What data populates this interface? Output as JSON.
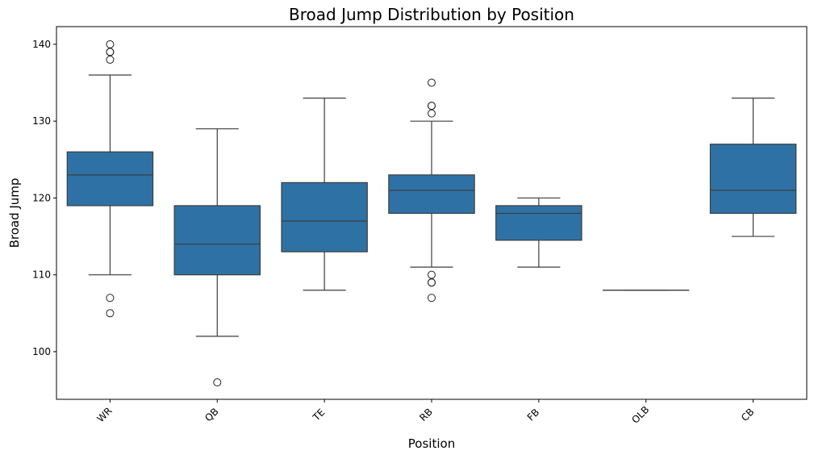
{
  "chart_data": {
    "type": "box",
    "title": "Broad Jump Distribution by Position",
    "xlabel": "Position",
    "ylabel": "Broad Jump",
    "ylim": [
      93.8,
      142.3
    ],
    "y_ticks": [
      100,
      110,
      120,
      130,
      140
    ],
    "grid": false,
    "legend": "none",
    "box_color": "#2e72a5",
    "line_color": "#3d3d3d",
    "categories": [
      "WR",
      "QB",
      "TE",
      "RB",
      "FB",
      "OLB",
      "CB"
    ],
    "boxes": [
      {
        "position": "WR",
        "whisker_low": 110,
        "q1": 119,
        "median": 123,
        "q3": 126,
        "whisker_high": 136,
        "outliers": [
          105,
          107,
          138,
          139,
          139,
          140
        ]
      },
      {
        "position": "QB",
        "whisker_low": 102,
        "q1": 110,
        "median": 114,
        "q3": 119,
        "whisker_high": 129,
        "outliers": [
          96
        ]
      },
      {
        "position": "TE",
        "whisker_low": 108,
        "q1": 113,
        "median": 117,
        "q3": 122,
        "whisker_high": 133,
        "outliers": []
      },
      {
        "position": "RB",
        "whisker_low": 111,
        "q1": 118,
        "median": 121,
        "q3": 123,
        "whisker_high": 130,
        "outliers": [
          107,
          109,
          109,
          110,
          131,
          132,
          132,
          135
        ]
      },
      {
        "position": "FB",
        "whisker_low": 111,
        "q1": 114.5,
        "median": 118,
        "q3": 119,
        "whisker_high": 120,
        "outliers": []
      },
      {
        "position": "OLB",
        "whisker_low": 108,
        "q1": 108,
        "median": 108,
        "q3": 108,
        "whisker_high": 108,
        "outliers": []
      },
      {
        "position": "CB",
        "whisker_low": 115,
        "q1": 118,
        "median": 121,
        "q3": 127,
        "whisker_high": 133,
        "outliers": []
      }
    ]
  }
}
